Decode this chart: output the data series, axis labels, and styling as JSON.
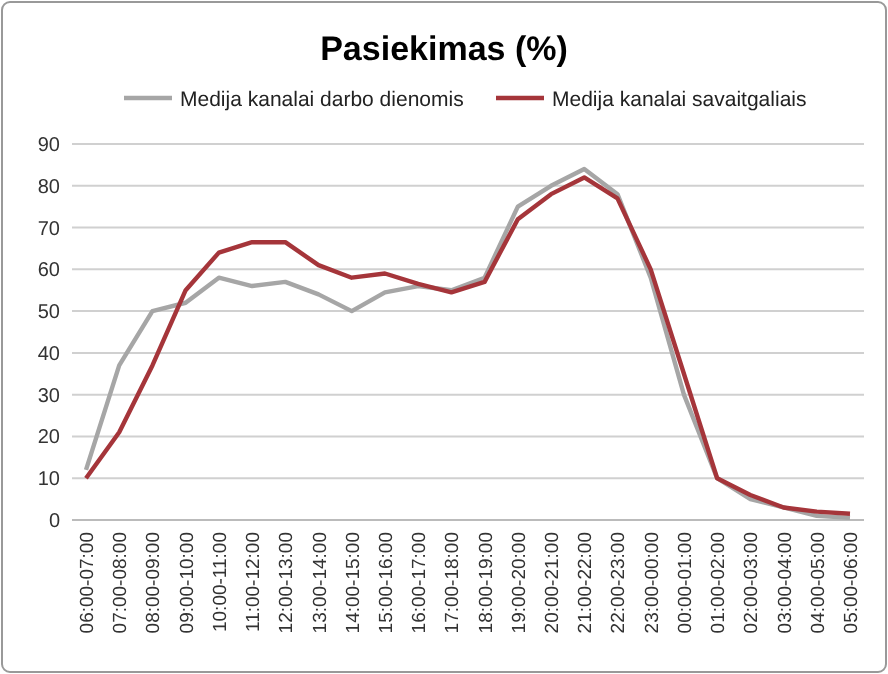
{
  "chart_data": {
    "type": "line",
    "title": "Pasiekimas (%)",
    "categories": [
      "06:00-07:00",
      "07:00-08:00",
      "08:00-09:00",
      "09:00-10:00",
      "10:00-11:00",
      "11:00-12:00",
      "12:00-13:00",
      "13:00-14:00",
      "14:00-15:00",
      "15:00-16:00",
      "16:00-17:00",
      "17:00-18:00",
      "18:00-19:00",
      "19:00-20:00",
      "20:00-21:00",
      "21:00-22:00",
      "22:00-23:00",
      "23:00-00:00",
      "00:00-01:00",
      "01:00-02:00",
      "02:00-03:00",
      "03:00-04:00",
      "04:00-05:00",
      "05:00-06:00"
    ],
    "series": [
      {
        "name": "Medija kanalai darbo dienomis",
        "color": "#a6a6a6",
        "values": [
          12,
          37,
          50,
          52,
          58,
          56,
          57,
          54,
          50,
          54.5,
          56,
          55,
          58,
          75,
          80,
          84,
          78,
          58,
          30,
          10,
          5,
          3,
          1,
          0.5
        ]
      },
      {
        "name": "Medija kanalai savaitgaliais",
        "color": "#a5353a",
        "values": [
          10,
          21,
          37,
          55,
          64,
          66.5,
          66.5,
          61,
          58,
          59,
          56.5,
          54.5,
          57,
          72,
          78,
          82,
          77,
          60,
          35,
          10,
          6,
          3,
          2,
          1.5
        ]
      }
    ],
    "ylim": [
      0,
      90
    ],
    "yticks": [
      0,
      10,
      20,
      30,
      40,
      50,
      60,
      70,
      80,
      90
    ],
    "grid": "y",
    "legend": "top",
    "marker": "none",
    "line_style": "solid"
  }
}
